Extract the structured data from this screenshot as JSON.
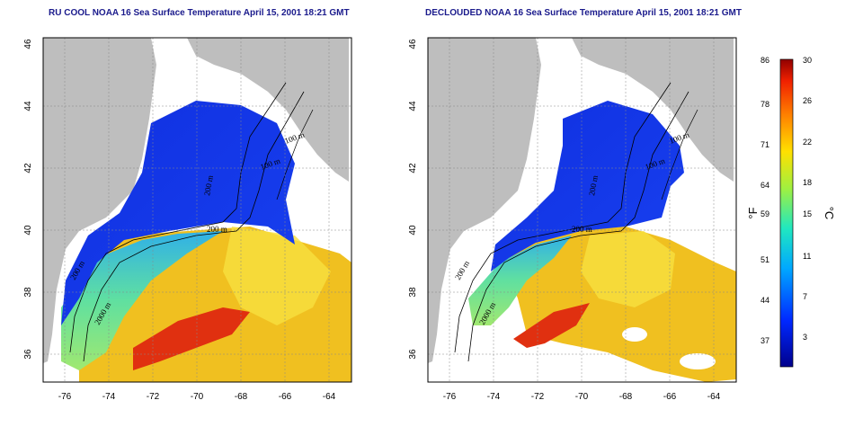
{
  "panels": [
    {
      "id": "left",
      "title": "RU COOL NOAA 16 Sea Surface Temperature April 15, 2001 18:21 GMT"
    },
    {
      "id": "right",
      "title": "DECLOUDED NOAA 16 Sea Surface Temperature April 15, 2001 18:21 GMT"
    }
  ],
  "lat_ticks": [
    "36",
    "38",
    "40",
    "42",
    "44",
    "46"
  ],
  "lon_ticks": [
    "-76",
    "-74",
    "-72",
    "-70",
    "-68",
    "-66",
    "-64"
  ],
  "contour_labels": [
    "100 m",
    "100 m",
    "200 m",
    "200 m",
    "2000 m",
    "200 m"
  ],
  "colorbar": {
    "fahrenheit_labels": [
      "86",
      "78",
      "71",
      "64",
      "59",
      "51",
      "44",
      "37"
    ],
    "celsius_labels": [
      "30",
      "26",
      "22",
      "18",
      "15",
      "11",
      "7",
      "3"
    ],
    "fahrenheit_unit": "°F",
    "celsius_unit": "°C"
  },
  "colors": {
    "land": "#bebebe",
    "title": "#1a1a8c",
    "cold": "#0a1adc",
    "warm": "#e02010",
    "mid": "#f0d020"
  }
}
